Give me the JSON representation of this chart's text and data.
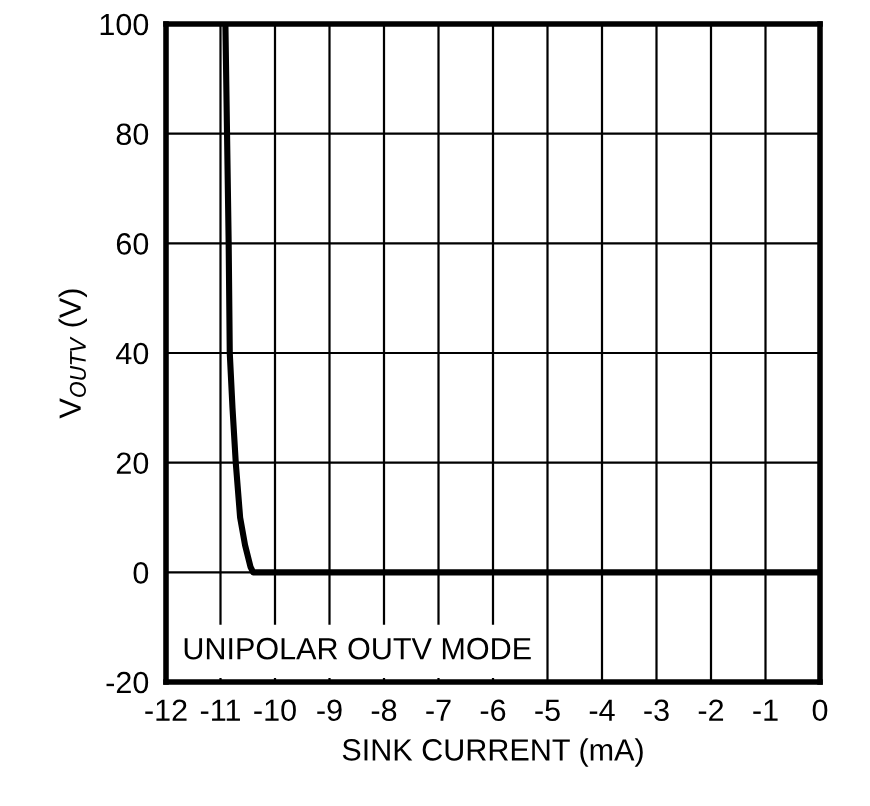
{
  "chart_data": {
    "type": "line",
    "xlabel": "SINK CURRENT (mA)",
    "ylabel": "V$_{OUTV}$ (V)",
    "x": [
      -10.91,
      -10.88,
      -10.85,
      -10.83,
      -10.78,
      -10.72,
      -10.64,
      -10.55,
      -10.45,
      -10.4,
      -9,
      -7,
      -5,
      -3,
      -1,
      0
    ],
    "series": [
      {
        "color": "#000000",
        "values": [
          100,
          80,
          60,
          40,
          30,
          20,
          10,
          5,
          1,
          0,
          0,
          0,
          0,
          0,
          0,
          0
        ]
      }
    ],
    "xlim": [
      -12,
      0
    ],
    "xticks": [
      -12,
      -11,
      -10,
      -9,
      -8,
      -7,
      -6,
      -5,
      -4,
      -3,
      -2,
      -1,
      0
    ],
    "ylim": [
      -20,
      100
    ],
    "yticks": [
      -20,
      0,
      20,
      40,
      60,
      80,
      100
    ],
    "grid": true,
    "annotations": [
      "UNIPOLAR OUTV MODE"
    ],
    "line_style": "solid",
    "marker": "none"
  }
}
